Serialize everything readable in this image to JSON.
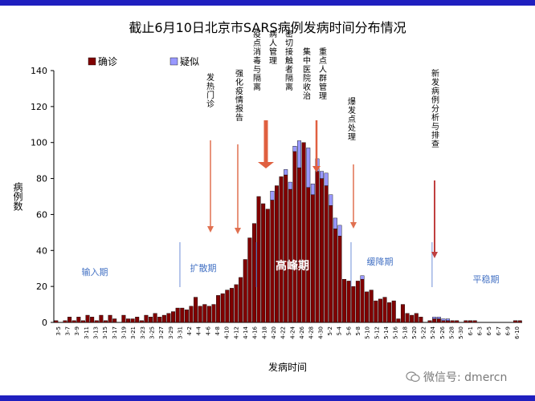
{
  "chart_data": {
    "type": "bar",
    "title": "截止6月10日北京市SARS病例发病时间分布情况",
    "xlabel": "发病时间",
    "ylabel": "病例数",
    "ylim": [
      0,
      140
    ],
    "yticks": [
      0,
      20,
      40,
      60,
      80,
      100,
      120,
      140
    ],
    "legend_position": "top-left",
    "series": [
      {
        "name": "确诊",
        "color": "#800000"
      },
      {
        "name": "疑似",
        "color": "#9999ff"
      }
    ],
    "confirmed": [
      1,
      0,
      1,
      3,
      1,
      3,
      1,
      4,
      3,
      1,
      4,
      1,
      4,
      2,
      0,
      4,
      2,
      2,
      3,
      1,
      4,
      3,
      5,
      3,
      4,
      5,
      6,
      8,
      8,
      7,
      9,
      14,
      9,
      10,
      9,
      10,
      15,
      16,
      18,
      19,
      21,
      25,
      35,
      47,
      55,
      70,
      66,
      63,
      68,
      76,
      81,
      82,
      74,
      95,
      86,
      100,
      75,
      71,
      84,
      80,
      76,
      65,
      52,
      48,
      24,
      23,
      20,
      23,
      24,
      17,
      18,
      12,
      13,
      14,
      11,
      12,
      2,
      10,
      5,
      4,
      5,
      3,
      0,
      1,
      2,
      2,
      1,
      1,
      1,
      1,
      0,
      1,
      1,
      1,
      0,
      0,
      0,
      0,
      0,
      0,
      0,
      0,
      1,
      1
    ],
    "suspected": [
      0,
      0,
      0,
      0,
      0,
      0,
      0,
      0,
      0,
      0,
      0,
      0,
      0,
      0,
      0,
      0,
      0,
      0,
      0,
      0,
      0,
      0,
      0,
      0,
      0,
      0,
      0,
      0,
      0,
      0,
      0,
      0,
      0,
      0,
      0,
      0,
      0,
      0,
      0,
      0,
      0,
      0,
      0,
      0,
      0,
      0,
      0,
      0,
      5,
      0,
      0,
      3,
      4,
      3,
      15,
      0,
      22,
      6,
      7,
      4,
      7,
      6,
      6,
      6,
      0,
      0,
      0,
      0,
      2,
      0,
      0,
      0,
      0,
      0,
      0,
      0,
      0,
      0,
      0,
      0,
      0,
      0,
      0,
      0,
      1,
      1,
      1,
      1,
      0,
      0,
      0,
      0,
      0,
      0,
      0,
      0,
      0,
      0,
      0,
      0,
      0,
      0,
      0,
      0
    ],
    "x_tick_labels": [
      "3-5",
      "3-7",
      "3-9",
      "3-11",
      "3-13",
      "3-15",
      "3-17",
      "3-19",
      "3-21",
      "3-23",
      "3-25",
      "3-27",
      "3-29",
      "3-31",
      "4-2",
      "4-4",
      "4-6",
      "4-8",
      "4-10",
      "4-12",
      "4-14",
      "4-16",
      "4-18",
      "4-20",
      "4-22",
      "4-24",
      "4-26",
      "4-28",
      "4-30",
      "5-2",
      "5-4",
      "5-6",
      "5-8",
      "5-10",
      "5-12",
      "5-14",
      "5-16",
      "5-18",
      "5-20",
      "5-22",
      "5-24",
      "5-26",
      "5-28",
      "5-30",
      "6-1",
      "6-3",
      "6-5",
      "6-7",
      "6-9",
      "6-10"
    ],
    "annotations": [
      {
        "text": "发热门诊",
        "arrow_color": "#e07050",
        "arrow_index": 36
      },
      {
        "text": "强化疫情报告",
        "arrow_color": "#e07050",
        "arrow_index": 43
      },
      {
        "text": "疫点消毒与隔离",
        "arrow_color": "#e06040",
        "arrow_index": 50
      },
      {
        "text": "病人管理",
        "arrow_color": "#e06040",
        "arrow_index": 50
      },
      {
        "text": "密切接触者隔离",
        "arrow_color": "#e06040",
        "arrow_index": 50
      },
      {
        "text": "集中医院收治",
        "arrow_color": "#e06040",
        "arrow_index": 59
      },
      {
        "text": "重点人群管理",
        "arrow_color": "#e06040",
        "arrow_index": 59
      },
      {
        "text": "爆发点处理",
        "arrow_color": "#e07050",
        "arrow_index": 69
      },
      {
        "text": "新发病例分析与排查",
        "arrow_color": "#c04040",
        "arrow_index": 88
      }
    ],
    "phases": [
      {
        "text": "输入期",
        "color": "#4472c4"
      },
      {
        "text": "扩散期",
        "color": "#4472c4"
      },
      {
        "text": "高峰期",
        "color": "#ffffff"
      },
      {
        "text": "缓降期",
        "color": "#4472c4"
      },
      {
        "text": "平稳期",
        "color": "#4472c4"
      }
    ],
    "phase_dividers_at_index": [
      28,
      45,
      66,
      84
    ]
  },
  "watermark": "微信号: dmercn"
}
